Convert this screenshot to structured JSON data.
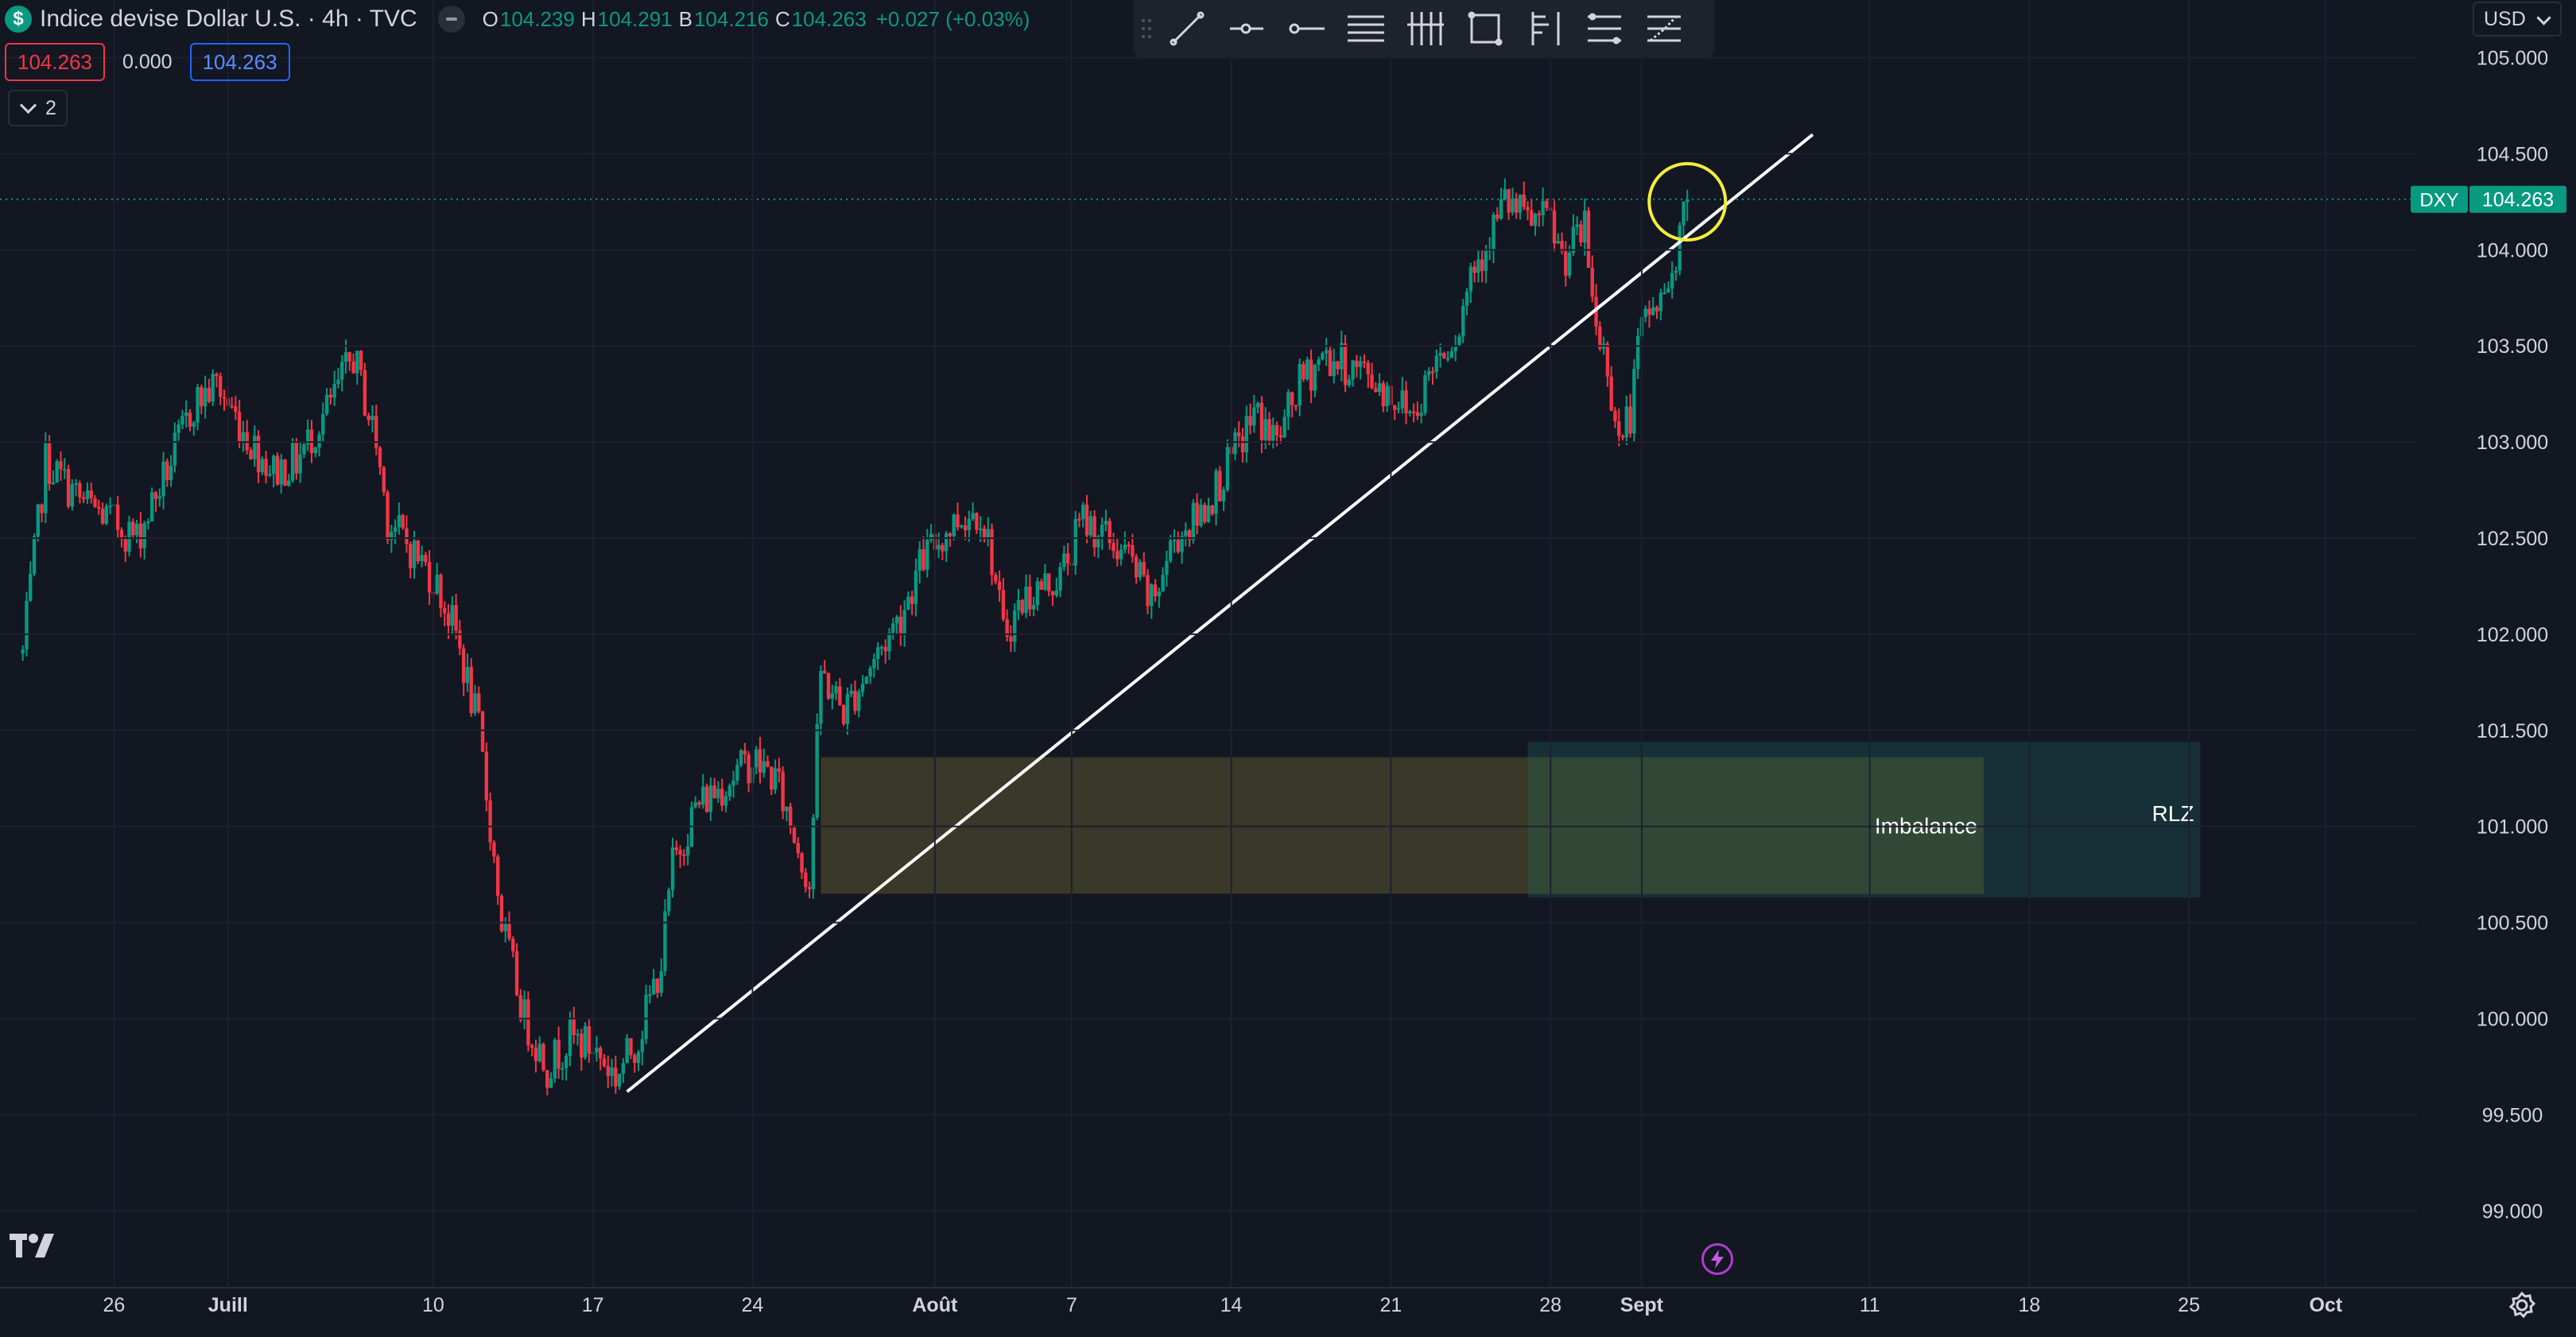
{
  "legend": {
    "symbol_icon": "dollar-icon",
    "title": "Indice devise Dollar U.S. · 4h · TVC",
    "open": {
      "label": "O",
      "value": "104.239"
    },
    "high": {
      "label": "H",
      "value": "104.291"
    },
    "low": {
      "label": "B",
      "value": "104.216"
    },
    "close": {
      "label": "C",
      "value": "104.263"
    },
    "change": "+0.027 (+0.03%)"
  },
  "trade": {
    "sell": "104.263",
    "spread": "0.000",
    "buy": "104.263"
  },
  "indicators_toggle": "2",
  "currency": "USD",
  "toolbar": {
    "tools": [
      "trendline-icon",
      "ray-icon",
      "horizontal-ray-icon",
      "parallel-channel-icon",
      "pitchfork-icon",
      "rectangle-icon",
      "flag-icon",
      "fib-retracement-icon",
      "fib-extension-icon"
    ]
  },
  "colors": {
    "background": "#131722",
    "up": "#089981",
    "down": "#f23645",
    "grid": "#1c2030",
    "axis_text": "#d1d4dc"
  },
  "chart_data": {
    "type": "candlestick",
    "symbol_label": "DXY",
    "last_price": "104.263",
    "y_ticks": [
      105.0,
      104.5,
      104.0,
      103.5,
      103.0,
      102.5,
      102.0,
      101.5,
      101.0,
      100.5,
      100.0,
      99.5,
      99.0
    ],
    "x_ticks": [
      {
        "label": "26",
        "date": "2023-06-26"
      },
      {
        "label": "Juill",
        "date": "2023-07-01",
        "bold": true
      },
      {
        "label": "10",
        "date": "2023-07-10"
      },
      {
        "label": "17",
        "date": "2023-07-17"
      },
      {
        "label": "24",
        "date": "2023-07-24"
      },
      {
        "label": "Août",
        "date": "2023-08-01",
        "bold": true
      },
      {
        "label": "7",
        "date": "2023-08-07"
      },
      {
        "label": "14",
        "date": "2023-08-14"
      },
      {
        "label": "21",
        "date": "2023-08-21"
      },
      {
        "label": "28",
        "date": "2023-08-28"
      },
      {
        "label": "Sept",
        "date": "2023-09-01",
        "bold": true
      },
      {
        "label": "11",
        "date": "2023-09-11"
      },
      {
        "label": "18",
        "date": "2023-09-18"
      },
      {
        "label": "25",
        "date": "2023-09-25"
      },
      {
        "label": "Oct",
        "date": "2023-10-01",
        "bold": true
      }
    ],
    "x_range": [
      "2023-06-21",
      "2023-10-05"
    ],
    "y_range": [
      98.6,
      105.3
    ],
    "path": [
      [
        "2023-06-22 00:00",
        101.9
      ],
      [
        "2023-06-23 00:00",
        102.9
      ],
      [
        "2023-06-24 12:00",
        102.7
      ],
      [
        "2023-06-27 00:00",
        102.5
      ],
      [
        "2023-06-28 12:00",
        102.9
      ],
      [
        "2023-06-29 12:00",
        103.2
      ],
      [
        "2023-06-30 12:00",
        103.3
      ],
      [
        "2023-07-02 00:00",
        103.0
      ],
      [
        "2023-07-03 00:00",
        102.85
      ],
      [
        "2023-07-04 00:00",
        102.9
      ],
      [
        "2023-07-05 12:00",
        103.2
      ],
      [
        "2023-07-06 12:00",
        103.45
      ],
      [
        "2023-07-07 12:00",
        103.0
      ],
      [
        "2023-07-08 00:00",
        102.6
      ],
      [
        "2023-07-10 00:00",
        102.3
      ],
      [
        "2023-07-11 00:00",
        102.0
      ],
      [
        "2023-07-12 00:00",
        101.5
      ],
      [
        "2023-07-12 12:00",
        101.0
      ],
      [
        "2023-07-13 00:00",
        100.5
      ],
      [
        "2023-07-14 00:00",
        100.0
      ],
      [
        "2023-07-15 00:00",
        99.75
      ],
      [
        "2023-07-16 00:00",
        99.9
      ],
      [
        "2023-07-17 00:00",
        99.85
      ],
      [
        "2023-07-18 00:00",
        99.7
      ],
      [
        "2023-07-19 00:00",
        99.9
      ],
      [
        "2023-07-20 00:00",
        100.3
      ],
      [
        "2023-07-20 12:00",
        100.8
      ],
      [
        "2023-07-21 12:00",
        101.1
      ],
      [
        "2023-07-22 12:00",
        101.2
      ],
      [
        "2023-07-24 00:00",
        101.35
      ],
      [
        "2023-07-25 00:00",
        101.25
      ],
      [
        "2023-07-26 00:00",
        100.9
      ],
      [
        "2023-07-26 12:00",
        100.7
      ],
      [
        "2023-07-27 00:00",
        101.8
      ],
      [
        "2023-07-27 12:00",
        101.7
      ],
      [
        "2023-07-28 00:00",
        101.6
      ],
      [
        "2023-07-29 00:00",
        101.8
      ],
      [
        "2023-07-30 12:00",
        102.1
      ],
      [
        "2023-07-31 12:00",
        102.4
      ],
      [
        "2023-08-02 00:00",
        102.6
      ],
      [
        "2023-08-03 00:00",
        102.65
      ],
      [
        "2023-08-03 12:00",
        102.4
      ],
      [
        "2023-08-04 00:00",
        102.0
      ],
      [
        "2023-08-05 00:00",
        102.2
      ],
      [
        "2023-08-06 12:00",
        102.3
      ],
      [
        "2023-08-07 12:00",
        102.6
      ],
      [
        "2023-08-08 12:00",
        102.5
      ],
      [
        "2023-08-09 12:00",
        102.4
      ],
      [
        "2023-08-10 12:00",
        102.15
      ],
      [
        "2023-08-11 12:00",
        102.5
      ],
      [
        "2023-08-12 12:00",
        102.6
      ],
      [
        "2023-08-14 00:00",
        102.9
      ],
      [
        "2023-08-15 00:00",
        103.15
      ],
      [
        "2023-08-16 00:00",
        103.0
      ],
      [
        "2023-08-17 00:00",
        103.3
      ],
      [
        "2023-08-18 00:00",
        103.45
      ],
      [
        "2023-08-19 00:00",
        103.4
      ],
      [
        "2023-08-20 00:00",
        103.35
      ],
      [
        "2023-08-21 00:00",
        103.25
      ],
      [
        "2023-08-22 00:00",
        103.15
      ],
      [
        "2023-08-23 00:00",
        103.45
      ],
      [
        "2023-08-24 00:00",
        103.6
      ],
      [
        "2023-08-24 12:00",
        103.9
      ],
      [
        "2023-08-25 00:00",
        104.0
      ],
      [
        "2023-08-26 00:00",
        104.25
      ],
      [
        "2023-08-27 00:00",
        104.15
      ],
      [
        "2023-08-28 00:00",
        104.15
      ],
      [
        "2023-08-28 12:00",
        103.95
      ],
      [
        "2023-08-29 12:00",
        104.1
      ],
      [
        "2023-08-30 00:00",
        103.6
      ],
      [
        "2023-08-30 12:00",
        103.4
      ],
      [
        "2023-08-31 00:00",
        103.0
      ],
      [
        "2023-08-31 12:00",
        103.15
      ],
      [
        "2023-09-01 00:00",
        103.6
      ],
      [
        "2023-09-01 12:00",
        103.7
      ],
      [
        "2023-09-02 00:00",
        103.75
      ],
      [
        "2023-09-02 12:00",
        104.0
      ],
      [
        "2023-09-03 00:00",
        104.263
      ]
    ],
    "trendline": {
      "start": [
        "2023-07-18 12:00",
        99.62
      ],
      "end": [
        "2023-09-08 12:00",
        104.6
      ]
    },
    "circle_highlight": {
      "center": [
        "2023-09-03 00:00",
        104.25
      ]
    },
    "zones": [
      {
        "label": "Imbalance",
        "x": [
          "2023-07-27 00:00",
          "2023-09-16 00:00"
        ],
        "y": [
          100.65,
          101.36
        ],
        "fill": "#3b3a2a"
      },
      {
        "label": "RLZ",
        "x": [
          "2023-08-27 00:00",
          "2023-09-25 12:00"
        ],
        "y": [
          100.63,
          101.44
        ],
        "fill": "#17323a"
      }
    ]
  }
}
